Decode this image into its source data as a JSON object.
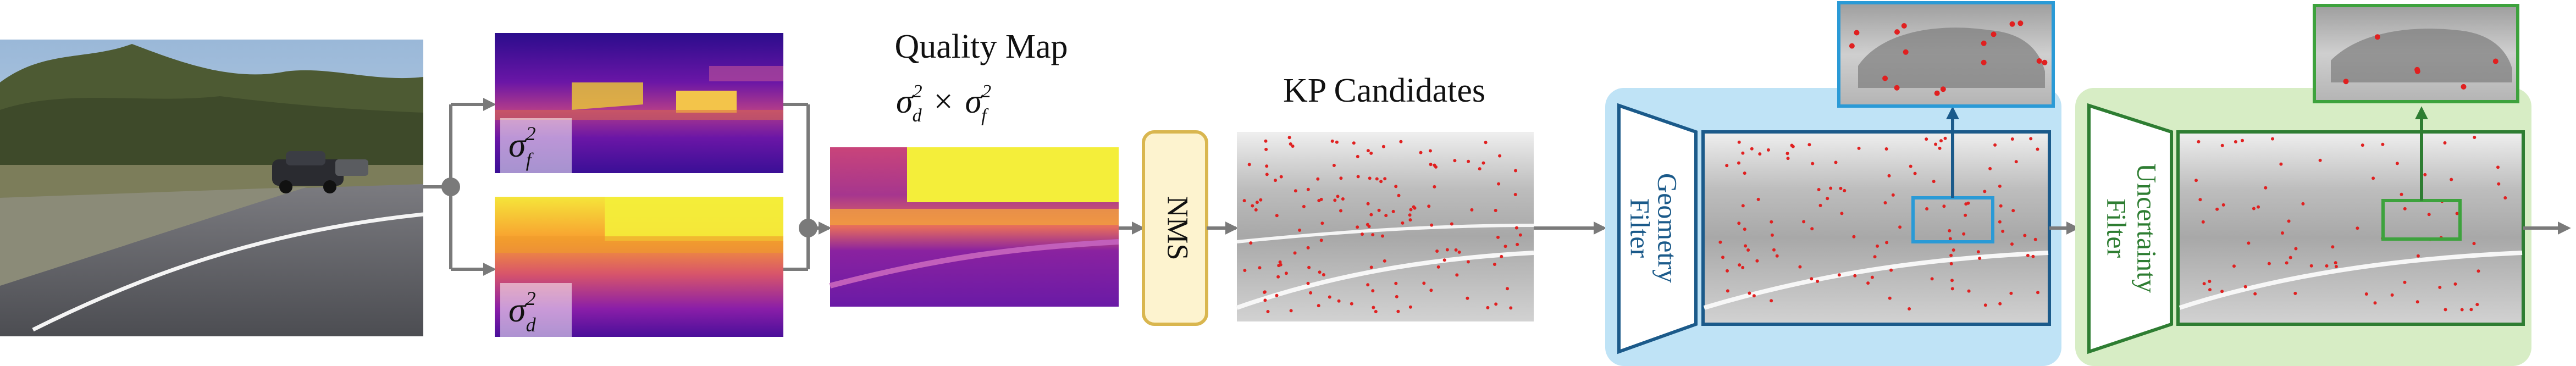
{
  "labels": {
    "quality_title": "Quality Map",
    "nms": "NMS",
    "kp_candidates": "KP Candidates",
    "geometry_filter_line1": "Geometry",
    "geometry_filter_line2": "Filter",
    "uncertainty_filter_line1": "Uncertainty",
    "uncertainty_filter_line2": "Filter"
  },
  "math": {
    "sigma": "σ",
    "sup": "2",
    "sub_f": "f",
    "sub_d": "d",
    "times": "×"
  },
  "colors": {
    "arrow": "#7a7a7a",
    "nms_fill": "#fdf3cf",
    "nms_stroke": "#d9b64f",
    "geometry_bg": "#bfe3f6",
    "geometry_stroke": "#1b5a8a",
    "geometry_zoom": "#2a9ad6",
    "uncertainty_bg": "#d7edc5",
    "uncertainty_stroke": "#2e7d32",
    "uncertainty_zoom": "#3da23d",
    "keypoint": "#e02020"
  },
  "icons": [
    "photo-road-scene",
    "heatmap-sigma-f",
    "heatmap-sigma-d",
    "heatmap-quality",
    "trapezoid-filter"
  ]
}
